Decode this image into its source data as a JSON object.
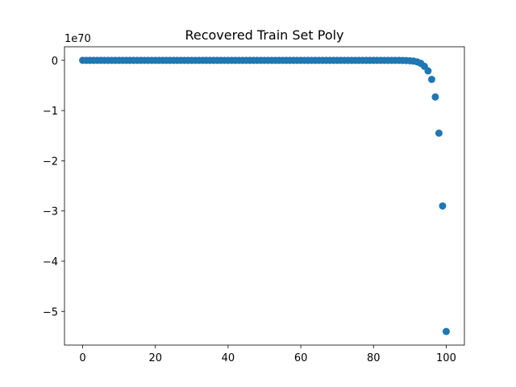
{
  "chart_data": {
    "type": "scatter",
    "title": "Recovered Train Set Poly",
    "xlabel": "",
    "ylabel": "",
    "offset_label": "1e70",
    "xlim": [
      -5,
      105
    ],
    "ylim": [
      -5.67,
      0.27
    ],
    "x_ticks": [
      0,
      20,
      40,
      60,
      80,
      100
    ],
    "x_tick_labels": [
      "0",
      "20",
      "40",
      "60",
      "80",
      "100"
    ],
    "y_ticks": [
      0,
      -1,
      -2,
      -3,
      -4,
      -5
    ],
    "y_tick_labels": [
      "0",
      "−1",
      "−2",
      "−3",
      "−4",
      "−5"
    ],
    "grid": false,
    "marker_color": "#1f77b4",
    "series": [
      {
        "x": [
          0,
          1,
          2,
          3,
          4,
          5,
          6,
          7,
          8,
          9,
          10,
          11,
          12,
          13,
          14,
          15,
          16,
          17,
          18,
          19,
          20,
          21,
          22,
          23,
          24,
          25,
          26,
          27,
          28,
          29,
          30,
          31,
          32,
          33,
          34,
          35,
          36,
          37,
          38,
          39,
          40,
          41,
          42,
          43,
          44,
          45,
          46,
          47,
          48,
          49,
          50,
          51,
          52,
          53,
          54,
          55,
          56,
          57,
          58,
          59,
          60,
          61,
          62,
          63,
          64,
          65,
          66,
          67,
          68,
          69,
          70,
          71,
          72,
          73,
          74,
          75,
          76,
          77,
          78,
          79,
          80,
          81,
          82,
          83,
          84,
          85,
          86,
          87,
          88,
          89,
          90,
          91,
          92,
          93,
          94,
          95,
          96,
          97,
          98,
          99,
          100
        ],
        "y": [
          0,
          0,
          0,
          0,
          0,
          0,
          0,
          0,
          0,
          0,
          0,
          0,
          0,
          0,
          0,
          0,
          0,
          0,
          0,
          0,
          0,
          0,
          0,
          0,
          0,
          0,
          0,
          0,
          0,
          0,
          0,
          0,
          0,
          0,
          0,
          0,
          0,
          0,
          0,
          0,
          0,
          0,
          0,
          0,
          0,
          0,
          0,
          0,
          0,
          0,
          0,
          0,
          0,
          0,
          0,
          0,
          0,
          0,
          0,
          0,
          0,
          0,
          0,
          0,
          0,
          0,
          0,
          0,
          0,
          0,
          0,
          0,
          0,
          0,
          0,
          0,
          0,
          0,
          0,
          0,
          0,
          0,
          0,
          0,
          0,
          0,
          0,
          0,
          -0.002,
          -0.004,
          -0.008,
          -0.016,
          -0.03,
          -0.06,
          -0.12,
          -0.21,
          -0.38,
          -0.73,
          -1.45,
          -2.9,
          -5.4
        ]
      }
    ]
  }
}
